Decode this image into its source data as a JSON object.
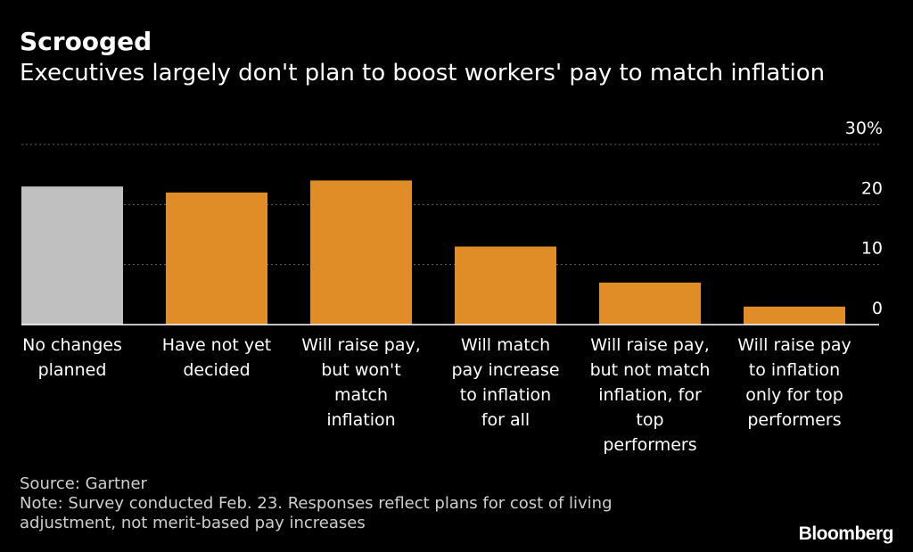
{
  "header": {
    "title": "Scrooged",
    "subtitle": "Executives largely don't plan to boost workers' pay to match inflation"
  },
  "chart_data": {
    "type": "bar",
    "categories": [
      [
        "No changes",
        "planned"
      ],
      [
        "Have not yet",
        "decided"
      ],
      [
        "Will raise pay,",
        "but won't",
        "match",
        "inflation"
      ],
      [
        "Will match",
        "pay increase",
        "to inflation",
        "for all"
      ],
      [
        "Will raise pay,",
        "but not match",
        "inflation, for",
        "top",
        "performers"
      ],
      [
        "Will raise pay",
        "to inflation",
        "only for top",
        "performers"
      ]
    ],
    "values": [
      23,
      22,
      24,
      13,
      7,
      3
    ],
    "bar_colors": [
      "#c0c0c0",
      "#e08c27",
      "#e08c27",
      "#e08c27",
      "#e08c27",
      "#e08c27"
    ],
    "ylim": [
      0,
      30
    ],
    "yticks": [
      0,
      10,
      20,
      30
    ],
    "ytick_labels": [
      "0",
      "10",
      "20",
      "30%"
    ],
    "y_axis_side": "right",
    "grid": "horizontal dotted",
    "title": "Scrooged",
    "subtitle": "Executives largely don't plan to boost workers' pay to match inflation"
  },
  "footer": {
    "source": "Source: Gartner",
    "note_line1": "Note: Survey conducted Feb. 23. Responses reflect plans for cost of living",
    "note_line2": "adjustment, not merit-based pay increases"
  },
  "brand": "Bloomberg",
  "colors": {
    "background": "#000000",
    "accent": "#e08c27",
    "highlight": "#c0c0c0",
    "grid": "#666666",
    "text": "#ffffff"
  }
}
